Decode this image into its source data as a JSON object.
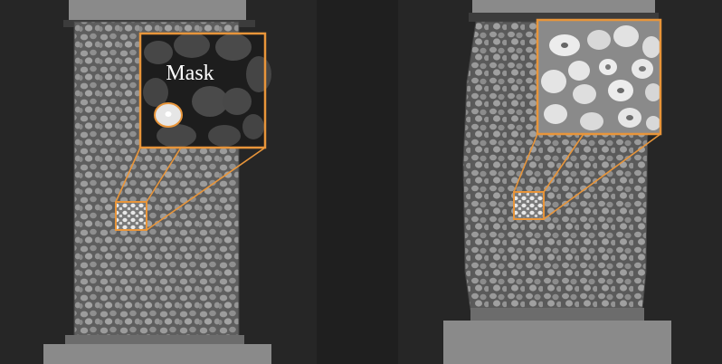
{
  "figure": {
    "mask_label": "Mask",
    "accent_color": "#e8953a",
    "panels": [
      {
        "id": "left",
        "view": "left-scan-with-mask-inset"
      },
      {
        "id": "right",
        "view": "right-scan-with-zoom-inset"
      }
    ]
  }
}
